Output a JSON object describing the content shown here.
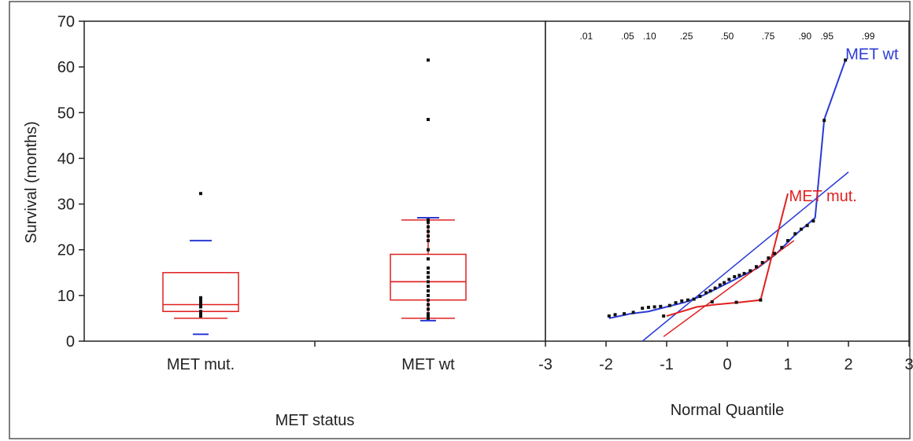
{
  "chart_data": [
    {
      "type": "box",
      "ylabel": "Survival (months)",
      "xlabel": "MET status",
      "ylim": [
        0,
        70
      ],
      "yticks": [
        0,
        10,
        20,
        30,
        40,
        50,
        60,
        70
      ],
      "categories": [
        "MET mut.",
        "MET wt"
      ],
      "boxes": [
        {
          "category": "MET mut.",
          "q1": 6.5,
          "median": 8.0,
          "q3": 15.0,
          "whisker_low": 5.0,
          "whisker_high": 15.0,
          "mean": 6.5,
          "p10": 1.5,
          "p90": 22.0,
          "outliers": [
            32.3
          ],
          "points": [
            5.5,
            6.0,
            6.5,
            7.5,
            8.0,
            8.5,
            9.0,
            9.5
          ]
        },
        {
          "category": "MET wt",
          "q1": 9.0,
          "median": 13.0,
          "q3": 19.0,
          "whisker_low": 5.0,
          "whisker_high": 26.5,
          "mean": 13.0,
          "p10": 4.5,
          "p90": 27.0,
          "outliers": [
            48.5,
            61.5
          ],
          "points": [
            5.0,
            5.5,
            6.0,
            7.0,
            8.0,
            9.0,
            10.0,
            11.0,
            12.0,
            13.0,
            14.0,
            15.0,
            16.0,
            18.0,
            20.0,
            22.0,
            23.0,
            24.0,
            25.0,
            26.0,
            26.5
          ]
        }
      ],
      "colors": {
        "box": "#e02020",
        "whisker_tick": "#2a3ad6",
        "points": "#111111"
      }
    },
    {
      "type": "line",
      "xlabel": "Normal Quantile",
      "xlim": [
        -3,
        3
      ],
      "xticks": [
        -3,
        -2,
        -1,
        0,
        1,
        2,
        3
      ],
      "ylim": [
        0,
        70
      ],
      "prob_ticks": [
        {
          "label": ".01",
          "q": -2.326
        },
        {
          "label": ".05",
          "q": -1.645
        },
        {
          "label": ".10",
          "q": -1.2816
        },
        {
          "label": ".25",
          "q": -0.6745
        },
        {
          "label": ".50",
          "q": 0
        },
        {
          "label": ".75",
          "q": 0.6745
        },
        {
          "label": ".90",
          "q": 1.2816
        },
        {
          "label": ".95",
          "q": 1.645
        },
        {
          "label": ".99",
          "q": 2.326
        }
      ],
      "series": [
        {
          "name": "MET wt",
          "color": "#2a3ad6",
          "label_at": {
            "x": 1.95,
            "y": 63
          },
          "x": [
            -1.95,
            -1.6,
            -1.3,
            -1.0,
            -0.7,
            -0.4,
            -0.1,
            0.2,
            0.5,
            0.8,
            1.1,
            1.45,
            1.6,
            1.95
          ],
          "y": [
            5.0,
            6.0,
            6.5,
            7.5,
            8.5,
            10.0,
            12.0,
            14.0,
            16.0,
            19.0,
            23.0,
            27.0,
            48.5,
            61.5
          ],
          "fit": {
            "x": [
              -1.4,
              2.0
            ],
            "y": [
              0,
              37
            ]
          }
        },
        {
          "name": "MET mut.",
          "color": "#e02020",
          "label_at": {
            "x": 1.02,
            "y": 32
          },
          "x": [
            -1.0,
            -0.5,
            -0.2,
            0.2,
            0.55,
            1.0
          ],
          "y": [
            5.5,
            7.5,
            8.0,
            8.5,
            9.0,
            32.3
          ],
          "fit": {
            "x": [
              -1.05,
              1.1
            ],
            "y": [
              1,
              22
            ]
          }
        }
      ],
      "points": [
        [
          -1.95,
          5.5
        ],
        [
          -1.85,
          5.8
        ],
        [
          -1.7,
          6.0
        ],
        [
          -1.55,
          6.3
        ],
        [
          -1.4,
          7.2
        ],
        [
          -1.3,
          7.4
        ],
        [
          -1.2,
          7.5
        ],
        [
          -1.1,
          7.6
        ],
        [
          -1.05,
          5.5
        ],
        [
          -0.95,
          7.8
        ],
        [
          -0.85,
          8.4
        ],
        [
          -0.75,
          8.8
        ],
        [
          -0.65,
          9.0
        ],
        [
          -0.55,
          9.2
        ],
        [
          -0.45,
          9.8
        ],
        [
          -0.35,
          10.6
        ],
        [
          -0.28,
          11.0
        ],
        [
          -0.2,
          11.6
        ],
        [
          -0.12,
          12.3
        ],
        [
          -0.05,
          12.8
        ],
        [
          0.03,
          13.5
        ],
        [
          0.12,
          14.1
        ],
        [
          0.2,
          14.4
        ],
        [
          0.28,
          14.8
        ],
        [
          0.38,
          15.4
        ],
        [
          0.48,
          16.3
        ],
        [
          0.58,
          17.2
        ],
        [
          0.68,
          18.2
        ],
        [
          0.78,
          19.2
        ],
        [
          0.9,
          20.5
        ],
        [
          1.0,
          22.0
        ],
        [
          1.12,
          23.5
        ],
        [
          1.22,
          24.5
        ],
        [
          1.32,
          25.3
        ],
        [
          1.42,
          26.3
        ],
        [
          1.6,
          48.3
        ],
        [
          1.95,
          61.5
        ],
        [
          -0.25,
          8.6
        ],
        [
          0.15,
          8.5
        ],
        [
          0.55,
          9.0
        ]
      ]
    }
  ]
}
